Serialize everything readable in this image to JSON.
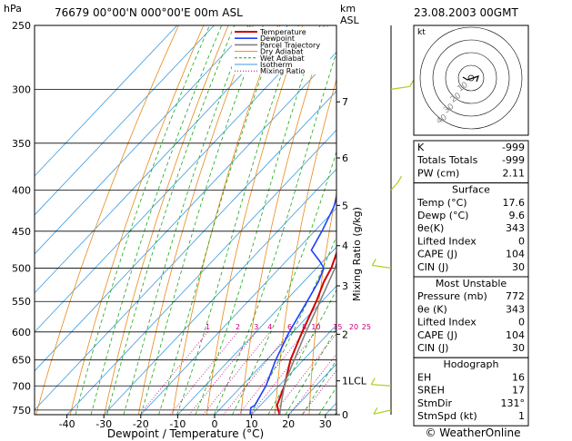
{
  "header": {
    "hpa_label": "hPa",
    "station_line": "76679  00°00'N  000°00'E  00m  ASL",
    "km_label": "km",
    "asl_label": "ASL",
    "date": "23.08.2003  00GMT"
  },
  "chart_data": {
    "type": "line",
    "pressure_ticks": [
      250,
      300,
      350,
      400,
      450,
      500,
      550,
      600,
      650,
      700,
      750
    ],
    "temp_ticks": [
      -40,
      -30,
      -20,
      -10,
      0,
      10,
      20,
      30
    ],
    "xlabel": "Dewpoint / Temperature (°C)",
    "ylabel_right": "Mixing Ratio (g/kg)",
    "km_ticks": [
      {
        "label": "7",
        "p": 311
      },
      {
        "label": "6",
        "p": 365
      },
      {
        "label": "5",
        "p": 418
      },
      {
        "label": "4",
        "p": 469
      },
      {
        "label": "3",
        "p": 526
      },
      {
        "label": "2",
        "p": 604
      },
      {
        "label": "1LCL",
        "p": 690
      },
      {
        "label": "0",
        "p": 760
      }
    ],
    "mixing_ratio_labels": [
      "1",
      "2",
      "3",
      "4",
      "6",
      "8",
      "10",
      "15",
      "20",
      "25"
    ],
    "legend": [
      "Temperature",
      "Dewpoint",
      "Parcel Trajectory",
      "Dry Adiabat",
      "Wet Adiabat",
      "Isotherm",
      "Mixing Ratio"
    ],
    "series": [
      {
        "name": "Temperature",
        "color": "#d00000",
        "points": [
          [
            760,
            17.6
          ],
          [
            740,
            14.5
          ],
          [
            700,
            11.5
          ],
          [
            650,
            6.5
          ],
          [
            600,
            2.5
          ],
          [
            550,
            -1.5
          ],
          [
            520,
            -4.5
          ],
          [
            500,
            -6
          ],
          [
            470,
            -9.5
          ],
          [
            450,
            -12.5
          ],
          [
            420,
            -16.5
          ],
          [
            400,
            -19
          ],
          [
            370,
            -24
          ],
          [
            350,
            -28
          ],
          [
            320,
            -33
          ],
          [
            300,
            -37
          ]
        ]
      },
      {
        "name": "Dewpoint",
        "color": "#1e40ff",
        "points": [
          [
            760,
            9.6
          ],
          [
            745,
            8
          ],
          [
            740,
            8.5
          ],
          [
            700,
            6.5
          ],
          [
            650,
            2.5
          ],
          [
            600,
            -1
          ],
          [
            550,
            -4
          ],
          [
            520,
            -6
          ],
          [
            500,
            -8
          ],
          [
            490,
            -11
          ],
          [
            475,
            -16
          ],
          [
            450,
            -18
          ],
          [
            420,
            -21
          ],
          [
            400,
            -24
          ],
          [
            380,
            -27
          ],
          [
            350,
            -31
          ],
          [
            320,
            -38
          ],
          [
            300,
            -44
          ],
          [
            290,
            -48
          ]
        ]
      },
      {
        "name": "Parcel Trajectory",
        "color": "#808080",
        "points": [
          [
            760,
            17.6
          ],
          [
            730,
            14.5
          ],
          [
            690,
            10.5
          ],
          [
            650,
            7.5
          ],
          [
            600,
            3.5
          ],
          [
            550,
            -0.5
          ],
          [
            500,
            -5
          ],
          [
            450,
            -11
          ],
          [
            400,
            -17.5
          ],
          [
            350,
            -26
          ],
          [
            300,
            -36
          ],
          [
            250,
            -49
          ]
        ]
      }
    ],
    "wind_barbs": [
      {
        "p": 300,
        "dir": 250
      },
      {
        "p": 400,
        "dir": 200
      },
      {
        "p": 500,
        "dir": 110
      },
      {
        "p": 700,
        "dir": 100
      },
      {
        "p": 750,
        "dir": 60
      }
    ]
  },
  "hodograph": {
    "unit_label": "kt",
    "ring_labels": [
      "10",
      "20",
      "30",
      "40"
    ]
  },
  "indices": {
    "rows": [
      {
        "label": "K",
        "value": "-999"
      },
      {
        "label": "Totals Totals",
        "value": "-999"
      },
      {
        "label": "PW (cm)",
        "value": "2.11"
      }
    ]
  },
  "surface": {
    "title": "Surface",
    "rows": [
      {
        "label": "Temp (°C)",
        "value": "17.6"
      },
      {
        "label": "Dewp (°C)",
        "value": "9.6"
      },
      {
        "label": "θe(K)",
        "value": "343"
      },
      {
        "label": "Lifted Index",
        "value": "0"
      },
      {
        "label": "CAPE (J)",
        "value": "104"
      },
      {
        "label": "CIN (J)",
        "value": "30"
      }
    ]
  },
  "most_unstable": {
    "title": "Most Unstable",
    "rows": [
      {
        "label": "Pressure (mb)",
        "value": "772"
      },
      {
        "label": "θe (K)",
        "value": "343"
      },
      {
        "label": "Lifted Index",
        "value": "0"
      },
      {
        "label": "CAPE (J)",
        "value": "104"
      },
      {
        "label": "CIN (J)",
        "value": "30"
      }
    ]
  },
  "hodograph_table": {
    "title": "Hodograph",
    "rows": [
      {
        "label": "EH",
        "value": "16"
      },
      {
        "label": "SREH",
        "value": "17"
      },
      {
        "label": "StmDir",
        "value": "131°"
      },
      {
        "label": "StmSpd (kt)",
        "value": "1"
      }
    ]
  },
  "footer": {
    "copyright": "© WeatherOnline"
  }
}
